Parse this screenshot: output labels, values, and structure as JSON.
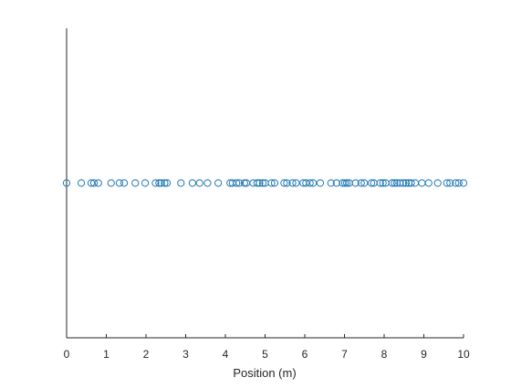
{
  "chart_data": {
    "type": "scatter",
    "title": "",
    "xlabel": "Position (m)",
    "ylabel": "",
    "xlim": [
      0,
      10
    ],
    "ylim": [
      -1,
      1
    ],
    "grid": false,
    "legend": "none",
    "x_ticks": [
      "0",
      "1",
      "2",
      "3",
      "4",
      "5",
      "6",
      "7",
      "8",
      "9",
      "10"
    ],
    "y_ticks": [],
    "colors": {
      "marker": "#1f77b4",
      "axis": "#262626",
      "background": "#ffffff"
    },
    "series": [
      {
        "marker": "circle-open",
        "x": [
          0.0,
          0.37,
          0.62,
          0.69,
          0.8,
          1.12,
          1.33,
          1.45,
          1.73,
          1.98,
          2.24,
          2.33,
          2.38,
          2.47,
          2.53,
          2.88,
          3.17,
          3.35,
          3.55,
          3.82,
          4.12,
          4.18,
          4.28,
          4.35,
          4.48,
          4.53,
          4.7,
          4.8,
          4.86,
          4.94,
          5.0,
          5.16,
          5.24,
          5.48,
          5.55,
          5.69,
          5.78,
          5.96,
          6.03,
          6.13,
          6.21,
          6.39,
          6.66,
          6.8,
          6.95,
          7.01,
          7.06,
          7.12,
          7.28,
          7.42,
          7.5,
          7.68,
          7.74,
          7.9,
          7.97,
          8.04,
          8.2,
          8.26,
          8.32,
          8.4,
          8.48,
          8.55,
          8.62,
          8.68,
          8.78,
          8.95,
          9.12,
          9.35,
          9.58,
          9.66,
          9.8,
          9.88,
          10.0
        ],
        "y": [
          0,
          0,
          0,
          0,
          0,
          0,
          0,
          0,
          0,
          0,
          0,
          0,
          0,
          0,
          0,
          0,
          0,
          0,
          0,
          0,
          0,
          0,
          0,
          0,
          0,
          0,
          0,
          0,
          0,
          0,
          0,
          0,
          0,
          0,
          0,
          0,
          0,
          0,
          0,
          0,
          0,
          0,
          0,
          0,
          0,
          0,
          0,
          0,
          0,
          0,
          0,
          0,
          0,
          0,
          0,
          0,
          0,
          0,
          0,
          0,
          0,
          0,
          0,
          0,
          0,
          0,
          0,
          0,
          0,
          0,
          0,
          0,
          0
        ]
      }
    ]
  }
}
